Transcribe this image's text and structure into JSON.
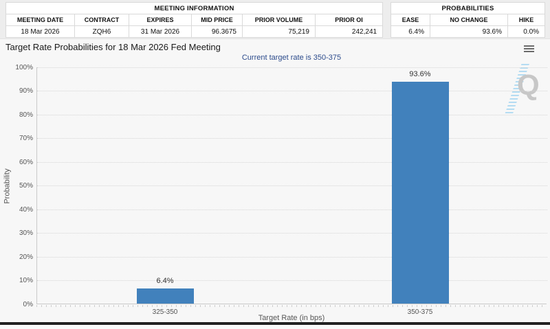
{
  "meeting_info": {
    "title": "MEETING INFORMATION",
    "columns": [
      "MEETING DATE",
      "CONTRACT",
      "EXPIRES",
      "MID PRICE",
      "PRIOR VOLUME",
      "PRIOR OI"
    ],
    "values": [
      "18 Mar 2026",
      "ZQH6",
      "31 Mar 2026",
      "96.3675",
      "75,219",
      "242,241"
    ]
  },
  "probabilities": {
    "title": "PROBABILITIES",
    "columns": [
      "EASE",
      "NO CHANGE",
      "HIKE"
    ],
    "values": [
      "6.4%",
      "93.6%",
      "0.0%"
    ]
  },
  "chart": {
    "title": "Target Rate Probabilities for 18 Mar 2026 Fed Meeting",
    "subtitle": "Current target rate is 350-375",
    "watermark_letter": "Q",
    "menu_icon": "hamburger-icon"
  },
  "chart_data": {
    "type": "bar",
    "categories": [
      "325-350",
      "350-375"
    ],
    "values": [
      6.4,
      93.6
    ],
    "data_labels": [
      "6.4%",
      "93.6%"
    ],
    "title": "Target Rate Probabilities for 18 Mar 2026 Fed Meeting",
    "subtitle": "Current target rate is 350-375",
    "xlabel": "Target Rate (in bps)",
    "ylabel": "Probability",
    "ylim": [
      0,
      100
    ],
    "ytick_labels": [
      "0%",
      "10%",
      "20%",
      "30%",
      "40%",
      "50%",
      "60%",
      "70%",
      "80%",
      "90%",
      "100%"
    ],
    "grid": "dotted horizontal",
    "legend": "none"
  },
  "colors": {
    "bar": "#4181BC",
    "subtitle_text": "#2B4A8B",
    "title_text": "#191919",
    "axis_text": "#555555",
    "chart_background": "#F7F7F7"
  }
}
